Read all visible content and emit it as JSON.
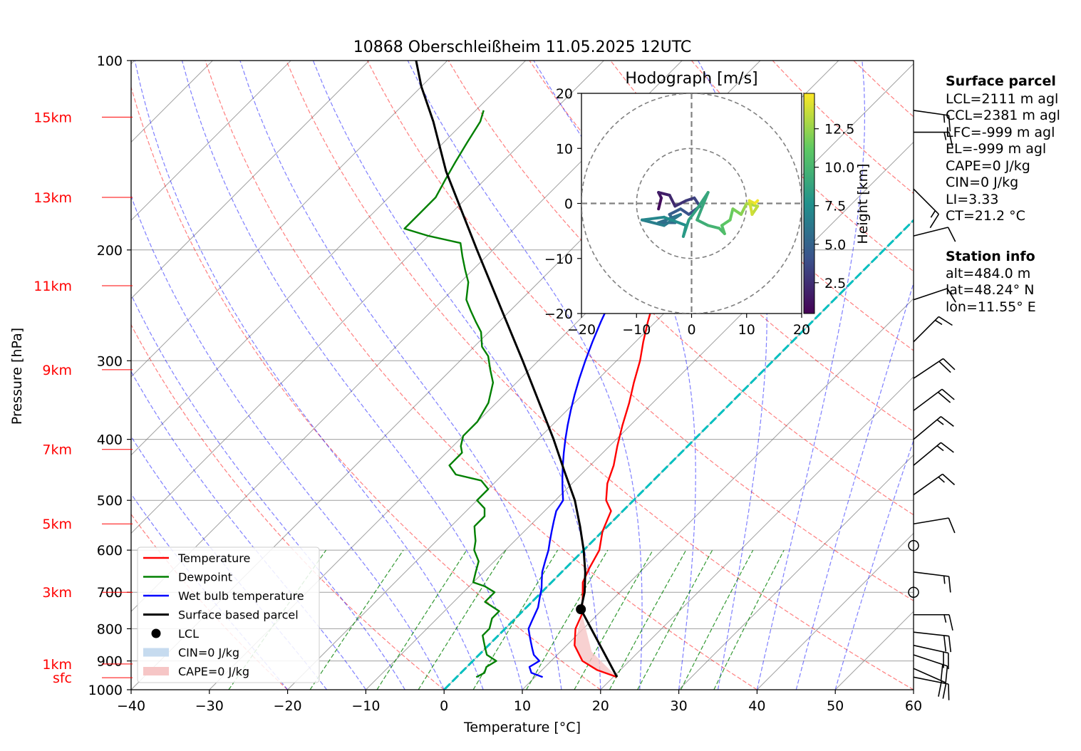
{
  "chart_data": {
    "type": "line",
    "title": "10868 Oberschleißheim 11.05.2025 12UTC",
    "xlabel": "Temperature [°C]",
    "ylabel": "Pressure [hPa]",
    "xlim": [
      -40,
      60
    ],
    "ylim": [
      1000,
      100
    ],
    "y_scale": "log",
    "x_ticks": [
      -40,
      -30,
      -20,
      -10,
      0,
      10,
      20,
      30,
      40,
      50,
      60
    ],
    "y_ticks": [
      100,
      200,
      300,
      400,
      500,
      600,
      700,
      800,
      900,
      1000
    ],
    "skew_slope_hpa_deg": 45,
    "grid": true,
    "height_markers": [
      {
        "label": "sfc",
        "p": 957
      },
      {
        "label": "1km",
        "p": 910
      },
      {
        "label": "3km",
        "p": 700
      },
      {
        "label": "5km",
        "p": 545
      },
      {
        "label": "7km",
        "p": 415
      },
      {
        "label": "9km",
        "p": 310
      },
      {
        "label": "11km",
        "p": 228
      },
      {
        "label": "13km",
        "p": 165
      },
      {
        "label": "15km",
        "p": 123
      }
    ],
    "isotherm_colors": {
      "dry_adiabat": "#ff0000",
      "moist_adiabat": "#0000ff",
      "mixing_ratio": "#008000",
      "isotherm": "#808080"
    },
    "series": [
      {
        "name": "Temperature",
        "color": "#ff0000",
        "points": [
          [
            20.5,
            955
          ],
          [
            17,
            930
          ],
          [
            14,
            900
          ],
          [
            11,
            850
          ],
          [
            9,
            800
          ],
          [
            8,
            760
          ],
          [
            6,
            715
          ],
          [
            4,
            675
          ],
          [
            3,
            640
          ],
          [
            2,
            600
          ],
          [
            0,
            560
          ],
          [
            -1.5,
            520
          ],
          [
            -3.5,
            500
          ],
          [
            -5.5,
            470
          ],
          [
            -7,
            440
          ],
          [
            -9,
            410
          ],
          [
            -11,
            380
          ],
          [
            -13,
            350
          ],
          [
            -15,
            325
          ],
          [
            -17,
            300
          ],
          [
            -19,
            280
          ],
          [
            -21,
            260
          ],
          [
            -23,
            240
          ],
          [
            -25,
            228
          ],
          [
            -27,
            222
          ],
          [
            -29,
            215
          ],
          [
            -31,
            208
          ],
          [
            -33,
            200
          ],
          [
            -35,
            190
          ],
          [
            -36,
            180
          ],
          [
            -37,
            172
          ],
          [
            -38,
            165
          ],
          [
            -39,
            158
          ],
          [
            -40,
            150
          ],
          [
            -41,
            143
          ],
          [
            -43,
            137
          ],
          [
            -44,
            130
          ],
          [
            -45,
            125
          ],
          [
            -46,
            120
          ],
          [
            -47,
            115
          ]
        ]
      },
      {
        "name": "Dewpoint",
        "color": "#008000",
        "points": [
          [
            2.5,
            955
          ],
          [
            3,
            940
          ],
          [
            2.5,
            920
          ],
          [
            3,
            900
          ],
          [
            1,
            880
          ],
          [
            0,
            860
          ],
          [
            -1,
            840
          ],
          [
            -2,
            820
          ],
          [
            -2,
            800
          ],
          [
            -3,
            770
          ],
          [
            -3,
            750
          ],
          [
            -6,
            725
          ],
          [
            -6,
            700
          ],
          [
            -8,
            685
          ],
          [
            -10,
            675
          ],
          [
            -11,
            650
          ],
          [
            -12,
            625
          ],
          [
            -14,
            600
          ],
          [
            -15,
            580
          ],
          [
            -16,
            565
          ],
          [
            -17,
            550
          ],
          [
            -17,
            530
          ],
          [
            -18,
            515
          ],
          [
            -20,
            500
          ],
          [
            -20,
            480
          ],
          [
            -22,
            465
          ],
          [
            -26,
            455
          ],
          [
            -28,
            440
          ],
          [
            -28,
            420
          ],
          [
            -29,
            410
          ],
          [
            -30,
            395
          ],
          [
            -30,
            375
          ],
          [
            -31,
            350
          ],
          [
            -33,
            325
          ],
          [
            -35,
            310
          ],
          [
            -37,
            295
          ],
          [
            -39,
            285
          ],
          [
            -41,
            270
          ],
          [
            -43,
            260
          ],
          [
            -45,
            250
          ],
          [
            -47,
            240
          ],
          [
            -49,
            225
          ],
          [
            -51,
            215
          ],
          [
            -53,
            205
          ],
          [
            -55,
            195
          ],
          [
            -60,
            190
          ],
          [
            -64,
            185
          ],
          [
            -64,
            175
          ],
          [
            -64,
            165
          ],
          [
            -65,
            155
          ],
          [
            -66,
            145
          ],
          [
            -67,
            135
          ],
          [
            -68,
            125
          ],
          [
            -69,
            120
          ]
        ]
      },
      {
        "name": "Wet bulb temperature",
        "color": "#0000ff",
        "points": [
          [
            11,
            955
          ],
          [
            9,
            940
          ],
          [
            8,
            920
          ],
          [
            8.5,
            900
          ],
          [
            7,
            880
          ],
          [
            6,
            860
          ],
          [
            5,
            840
          ],
          [
            4,
            820
          ],
          [
            3,
            800
          ],
          [
            2.5,
            780
          ],
          [
            2,
            760
          ],
          [
            1.5,
            740
          ],
          [
            0.5,
            715
          ],
          [
            -0.5,
            690
          ],
          [
            -1.5,
            670
          ],
          [
            -2.5,
            650
          ],
          [
            -3.5,
            625
          ],
          [
            -4.5,
            600
          ],
          [
            -5.5,
            580
          ],
          [
            -6.5,
            560
          ],
          [
            -7.5,
            540
          ],
          [
            -8.5,
            520
          ],
          [
            -9,
            500
          ],
          [
            -10.5,
            480
          ],
          [
            -12,
            460
          ],
          [
            -13.5,
            440
          ],
          [
            -15,
            420
          ],
          [
            -16.5,
            400
          ],
          [
            -18,
            380
          ],
          [
            -19.5,
            360
          ],
          [
            -21,
            340
          ],
          [
            -22.5,
            320
          ],
          [
            -24,
            300
          ],
          [
            -25.5,
            280
          ],
          [
            -27,
            260
          ],
          [
            -28.5,
            240
          ],
          [
            -30,
            228
          ],
          [
            -31,
            222
          ],
          [
            -32.5,
            215
          ],
          [
            -34,
            208
          ],
          [
            -35.5,
            200
          ],
          [
            -37,
            190
          ],
          [
            -38,
            180
          ],
          [
            -39,
            172
          ],
          [
            -40,
            165
          ],
          [
            -41,
            158
          ],
          [
            -42,
            150
          ],
          [
            -43,
            143
          ],
          [
            -44,
            137
          ],
          [
            -45,
            130
          ],
          [
            -46,
            125
          ],
          [
            -47,
            120
          ],
          [
            -48,
            115
          ]
        ]
      },
      {
        "name": "Surface based parcel",
        "color": "#000000",
        "points": [
          [
            20.5,
            955
          ],
          [
            7.2,
            745
          ],
          [
            5.5,
            700
          ],
          [
            3,
            650
          ],
          [
            0,
            600
          ],
          [
            -3.5,
            550
          ],
          [
            -7.5,
            500
          ],
          [
            -12.5,
            450
          ],
          [
            -18,
            400
          ],
          [
            -24.5,
            350
          ],
          [
            -32,
            300
          ],
          [
            -41,
            250
          ],
          [
            -52,
            200
          ],
          [
            -66,
            150
          ],
          [
            -74,
            125
          ],
          [
            -80,
            110
          ],
          [
            -84,
            100
          ]
        ]
      }
    ],
    "lcl_point": {
      "t": 7.2,
      "p": 745,
      "label": "LCL"
    },
    "freezing_line": {
      "t": 0,
      "color": "#00bfbf"
    },
    "legend": {
      "position": "lower-left",
      "entries": [
        {
          "label": "Temperature",
          "kind": "line",
          "color": "#ff0000"
        },
        {
          "label": "Dewpoint",
          "kind": "line",
          "color": "#008000"
        },
        {
          "label": "Wet bulb temperature",
          "kind": "line",
          "color": "#0000ff"
        },
        {
          "label": "Surface based parcel",
          "kind": "line",
          "color": "#000000"
        },
        {
          "label": "LCL",
          "kind": "dot",
          "color": "#000000"
        },
        {
          "label": "CIN=0 J/kg",
          "kind": "patch",
          "color": "#c6dbef"
        },
        {
          "label": "CAPE=0 J/kg",
          "kind": "patch",
          "color": "#f6c6c6"
        }
      ]
    },
    "wind_barbs": [
      {
        "p": 955,
        "u": -5,
        "v": 1
      },
      {
        "p": 925,
        "u": -9,
        "v": 4
      },
      {
        "p": 880,
        "u": -9,
        "v": 3
      },
      {
        "p": 850,
        "u": -9,
        "v": 2
      },
      {
        "p": 810,
        "u": -9,
        "v": 1
      },
      {
        "p": 760,
        "u": -9,
        "v": 0
      },
      {
        "p": 700,
        "u": 0,
        "v": 0
      },
      {
        "p": 650,
        "u": -8,
        "v": 1
      },
      {
        "p": 590,
        "u": 0,
        "v": 0
      },
      {
        "p": 545,
        "u": -6,
        "v": -1
      },
      {
        "p": 490,
        "u": -7,
        "v": -5
      },
      {
        "p": 440,
        "u": -6,
        "v": -5
      },
      {
        "p": 400,
        "u": -6,
        "v": -5
      },
      {
        "p": 360,
        "u": -8,
        "v": -6
      },
      {
        "p": 320,
        "u": -9,
        "v": -6
      },
      {
        "p": 280,
        "u": -5,
        "v": -5
      },
      {
        "p": 240,
        "u": -6,
        "v": -2
      },
      {
        "p": 190,
        "u": -4,
        "v": -1
      },
      {
        "p": 160,
        "u": -5,
        "v": 5
      },
      {
        "p": 130,
        "u": -7,
        "v": 0
      },
      {
        "p": 120,
        "u": -7,
        "v": 1
      }
    ],
    "hodograph": {
      "title": "Hodograph [m/s]",
      "xlim": [
        -20,
        20
      ],
      "ylim": [
        -20,
        20
      ],
      "ticks": [
        -20,
        -10,
        0,
        10,
        20
      ],
      "rings": [
        10,
        20
      ],
      "colorbar": {
        "label": "Height [km]",
        "ticks": [
          2.5,
          5.0,
          7.5,
          10.0,
          12.5
        ],
        "range": [
          0.5,
          14.8
        ],
        "colormap": "viridis"
      },
      "points": [
        {
          "u": -6,
          "v": -1,
          "h": 0.6
        },
        {
          "u": -5.5,
          "v": 1,
          "h": 1.0
        },
        {
          "u": -6,
          "v": 2,
          "h": 1.4
        },
        {
          "u": -4,
          "v": 1.5,
          "h": 1.8
        },
        {
          "u": -3,
          "v": -0.5,
          "h": 2.2
        },
        {
          "u": -1,
          "v": 0.5,
          "h": 2.6
        },
        {
          "u": 0.5,
          "v": 1,
          "h": 3.0
        },
        {
          "u": 1.5,
          "v": -0.5,
          "h": 3.4
        },
        {
          "u": -0.5,
          "v": -2,
          "h": 3.8
        },
        {
          "u": -2,
          "v": -1,
          "h": 4.2
        },
        {
          "u": -4,
          "v": -2,
          "h": 4.6
        },
        {
          "u": -3,
          "v": -3.5,
          "h": 5.0
        },
        {
          "u": -6,
          "v": -3.5,
          "h": 5.4
        },
        {
          "u": -2,
          "v": -2,
          "h": 5.8
        },
        {
          "u": -5,
          "v": -4,
          "h": 6.2
        },
        {
          "u": -9,
          "v": -3,
          "h": 6.6
        },
        {
          "u": -5,
          "v": -2.5,
          "h": 7.0
        },
        {
          "u": -1,
          "v": -4,
          "h": 7.4
        },
        {
          "u": -1.5,
          "v": -6,
          "h": 7.8
        },
        {
          "u": -0.5,
          "v": -3,
          "h": 8.2
        },
        {
          "u": 1,
          "v": -1,
          "h": 8.6
        },
        {
          "u": 3,
          "v": 2,
          "h": 8.8
        },
        {
          "u": 1,
          "v": -3,
          "h": 9.0
        },
        {
          "u": 3,
          "v": -4,
          "h": 9.4
        },
        {
          "u": 5,
          "v": -4.5,
          "h": 9.8
        },
        {
          "u": 6,
          "v": -5.5,
          "h": 10.2
        },
        {
          "u": 5.5,
          "v": -4,
          "h": 10.6
        },
        {
          "u": 7,
          "v": -3,
          "h": 11.0
        },
        {
          "u": 7.5,
          "v": -1,
          "h": 11.4
        },
        {
          "u": 9,
          "v": -2,
          "h": 11.8
        },
        {
          "u": 9.5,
          "v": -1,
          "h": 12.2
        },
        {
          "u": 10,
          "v": 0,
          "h": 12.6
        },
        {
          "u": 12,
          "v": -0.5,
          "h": 13.0
        },
        {
          "u": 11,
          "v": -2,
          "h": 13.4
        },
        {
          "u": 10.5,
          "v": 0.5,
          "h": 13.8
        },
        {
          "u": 11.5,
          "v": 0,
          "h": 14.2
        },
        {
          "u": 12,
          "v": 0.5,
          "h": 14.6
        }
      ]
    }
  },
  "surface_parcel": {
    "title": "Surface parcel",
    "lines": [
      "LCL=2111 m agl",
      "CCL=2381 m agl",
      "LFC=-999 m agl",
      "EL=-999 m agl",
      "CAPE=0 J/kg",
      "CIN=0 J/kg",
      "LI=3.33",
      "CT=21.2 °C"
    ]
  },
  "station_info": {
    "title": "Station info",
    "lines": [
      "alt=484.0 m",
      "lat=48.24° N",
      "lon=11.55° E"
    ]
  }
}
